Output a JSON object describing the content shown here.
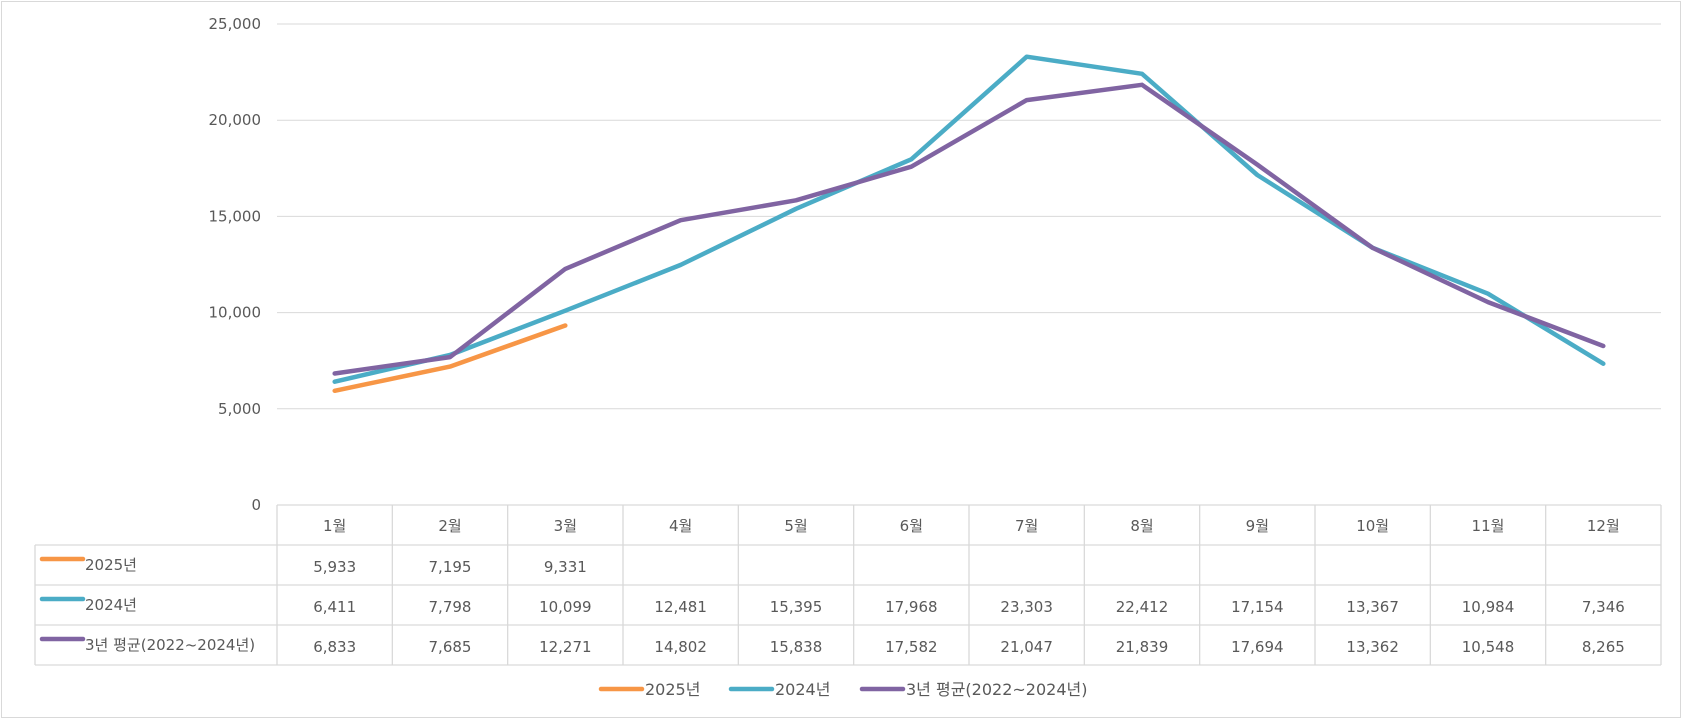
{
  "chart_data": {
    "type": "line",
    "categories": [
      "1월",
      "2월",
      "3월",
      "4월",
      "5월",
      "6월",
      "7월",
      "8월",
      "9월",
      "10월",
      "11월",
      "12월"
    ],
    "series": [
      {
        "name": "2025년",
        "color": "#f79646",
        "values": [
          5933,
          7195,
          9331,
          null,
          null,
          null,
          null,
          null,
          null,
          null,
          null,
          null
        ]
      },
      {
        "name": "2024년",
        "color": "#4bacc6",
        "values": [
          6411,
          7798,
          10099,
          12481,
          15395,
          17968,
          23303,
          22412,
          17154,
          13367,
          10984,
          7346
        ]
      },
      {
        "name": "3년 평균(2022~2024년)",
        "color": "#8064a2",
        "values": [
          6833,
          7685,
          12271,
          14802,
          15838,
          17582,
          21047,
          21839,
          17694,
          13362,
          10548,
          8265
        ]
      }
    ],
    "series_labels": [
      "2025년",
      "2024년",
      "3년 평균(2022~2024년)"
    ],
    "yticks": [
      "0",
      "5,000",
      "10,000",
      "15,000",
      "20,000",
      "25,000"
    ],
    "ylim": [
      0,
      25000
    ],
    "grid": true,
    "legend": "bottom",
    "table": {
      "rows": [
        [
          "5,933",
          "7,195",
          "9,331",
          "",
          "",
          "",
          "",
          "",
          "",
          "",
          "",
          ""
        ],
        [
          "6,411",
          "7,798",
          "10,099",
          "12,481",
          "15,395",
          "17,968",
          "23,303",
          "22,412",
          "17,154",
          "13,367",
          "10,984",
          "7,346"
        ],
        [
          "6,833",
          "7,685",
          "12,271",
          "14,802",
          "15,838",
          "17,582",
          "21,047",
          "21,839",
          "17,694",
          "13,362",
          "10,548",
          "8,265"
        ]
      ]
    }
  }
}
